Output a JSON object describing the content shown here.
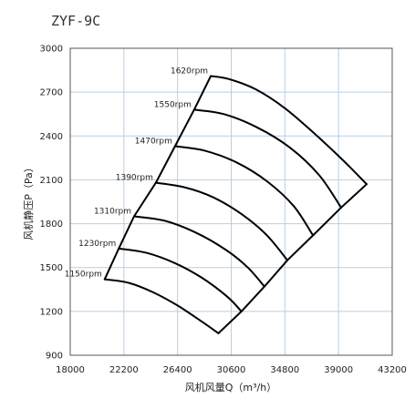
{
  "chart_data": {
    "type": "line",
    "title": "ZYF-9C",
    "xlabel": "风机风量Q（m³/h）",
    "ylabel": "风机静压P（Pa）",
    "xlim": [
      18000,
      43200
    ],
    "ylim": [
      900,
      3000
    ],
    "x_ticks": [
      "18000",
      "22200",
      "26400",
      "30600",
      "34800",
      "39000",
      "43200"
    ],
    "y_ticks": [
      "900",
      "1200",
      "1500",
      "1800",
      "2100",
      "2400",
      "2700",
      "3000"
    ],
    "grid": true,
    "series": [
      {
        "name": "1150rpm",
        "x": [
          20700,
          22600,
          24500,
          26400,
          28300,
          29600
        ],
        "y": [
          1420,
          1395,
          1330,
          1240,
          1130,
          1050
        ]
      },
      {
        "name": "1230rpm",
        "x": [
          21800,
          24000,
          26200,
          28300,
          30300,
          31400
        ],
        "y": [
          1630,
          1600,
          1530,
          1430,
          1300,
          1200
        ]
      },
      {
        "name": "1310rpm",
        "x": [
          23000,
          25400,
          27800,
          30200,
          31900,
          33200
        ],
        "y": [
          1850,
          1820,
          1740,
          1620,
          1500,
          1370
        ]
      },
      {
        "name": "1390rpm",
        "x": [
          24700,
          26900,
          29200,
          31500,
          33400,
          35000
        ],
        "y": [
          2080,
          2050,
          1980,
          1860,
          1720,
          1550
        ]
      },
      {
        "name": "1470rpm",
        "x": [
          26200,
          28500,
          31000,
          33400,
          35500,
          37000
        ],
        "y": [
          2330,
          2300,
          2220,
          2090,
          1920,
          1720
        ]
      },
      {
        "name": "1550rpm",
        "x": [
          27700,
          30000,
          32600,
          35200,
          37500,
          39200
        ],
        "y": [
          2580,
          2550,
          2460,
          2320,
          2130,
          1910
        ]
      },
      {
        "name": "1620rpm",
        "x": [
          29000,
          30400,
          32500,
          34800,
          37200,
          39400,
          41200
        ],
        "y": [
          2810,
          2790,
          2720,
          2590,
          2410,
          2230,
          2070
        ]
      }
    ]
  }
}
